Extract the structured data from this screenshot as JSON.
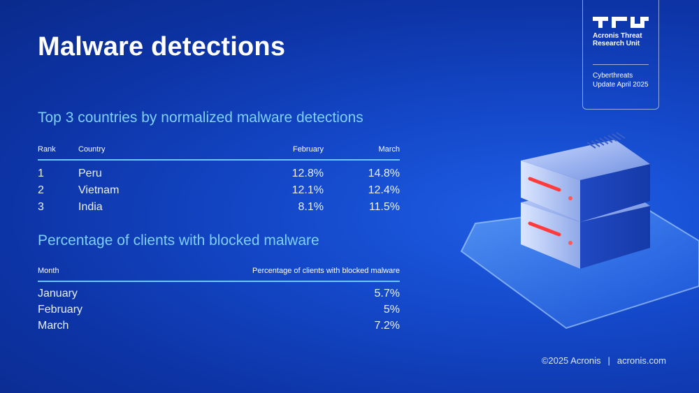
{
  "title": "Malware detections",
  "brand": {
    "unit_name": "Acronis Threat Research Unit",
    "subtitle": "Cyberthreats Update April 2025"
  },
  "table1": {
    "title": "Top 3 countries by normalized malware detections",
    "headers": [
      "Rank",
      "Country",
      "February",
      "March"
    ],
    "rows": [
      [
        "1",
        "Peru",
        "12.8%",
        "14.8%"
      ],
      [
        "2",
        "Vietnam",
        "12.1%",
        "12.4%"
      ],
      [
        "3",
        "India",
        "8.1%",
        "11.5%"
      ]
    ]
  },
  "table2": {
    "title": "Percentage of clients with blocked malware",
    "headers": [
      "Month",
      "Percentage of clients with blocked malware"
    ],
    "rows": [
      [
        "January",
        "5.7%"
      ],
      [
        "February",
        "5%"
      ],
      [
        "March",
        "7.2%"
      ]
    ]
  },
  "footer": {
    "copyright": "©2025 Acronis",
    "divider": "|",
    "website": "acronis.com"
  },
  "colors": {
    "background": "#1448c9",
    "accent": "#7fd0ff",
    "rule": "#6cc7ff",
    "led": "#ff3b3b"
  }
}
